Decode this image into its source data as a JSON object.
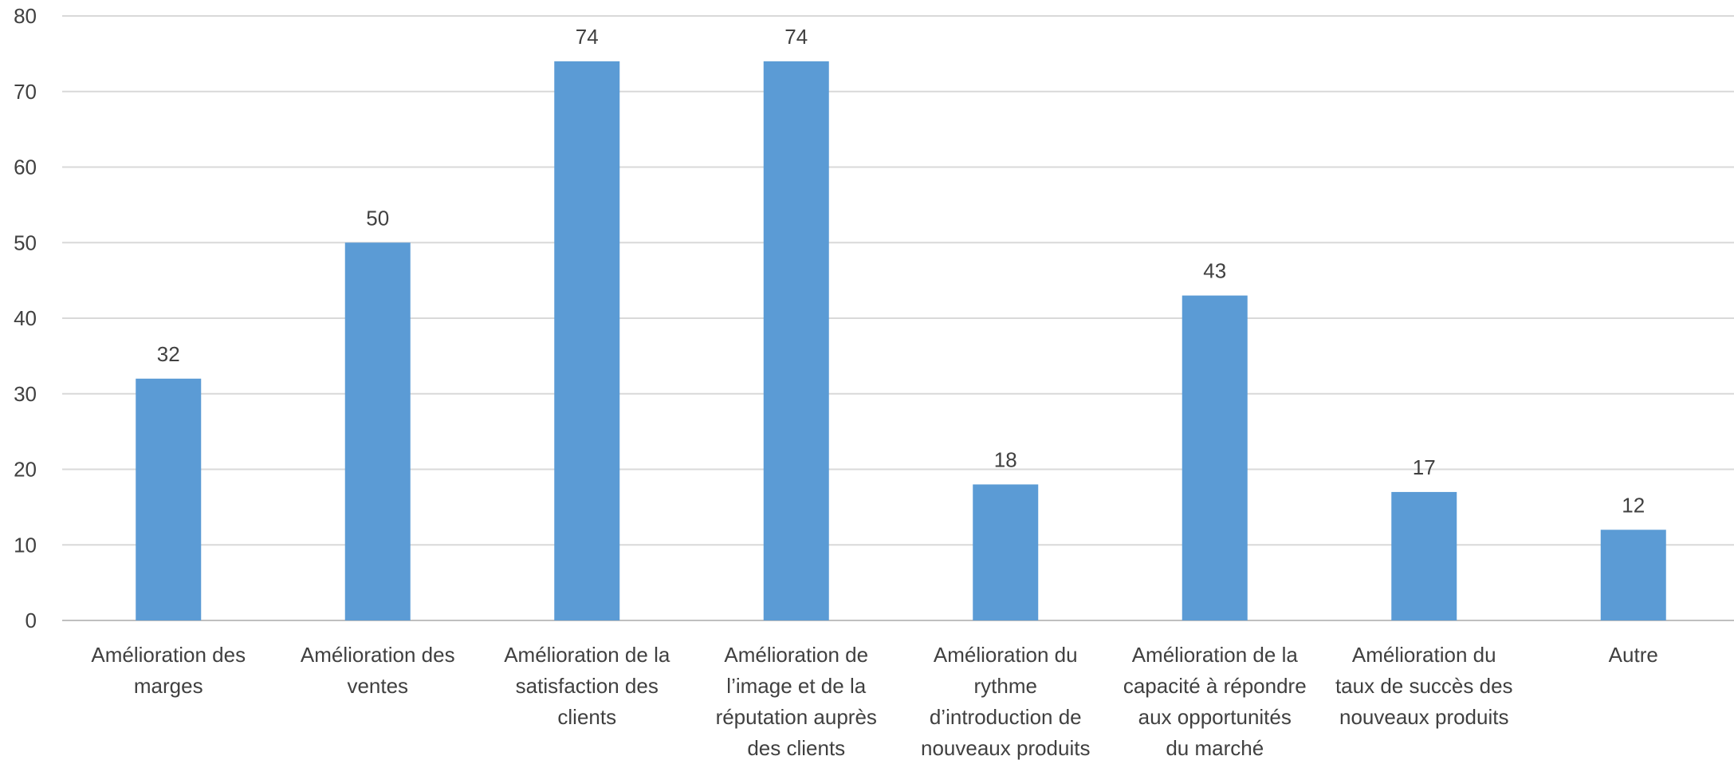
{
  "chart_data": {
    "type": "bar",
    "categories": [
      [
        "Amélioration des",
        "marges"
      ],
      [
        "Amélioration des",
        "ventes"
      ],
      [
        "Amélioration de la",
        "satisfaction des",
        "clients"
      ],
      [
        "Amélioration de",
        "l’image et de la",
        "réputation auprès",
        "des clients"
      ],
      [
        "Amélioration du",
        "rythme",
        "d’introduction de",
        "nouveaux produits"
      ],
      [
        "Amélioration de la",
        "capacité à répondre",
        "aux opportunités",
        "du marché"
      ],
      [
        "Amélioration du",
        "taux de succès des",
        "nouveaux produits"
      ],
      [
        "Autre"
      ]
    ],
    "values": [
      32,
      50,
      74,
      74,
      18,
      43,
      17,
      12
    ],
    "data_labels": [
      "32",
      "50",
      "74",
      "74",
      "18",
      "43",
      "17",
      "12"
    ],
    "ylim": [
      0,
      80
    ],
    "yticks": [
      0,
      10,
      20,
      30,
      40,
      50,
      60,
      70,
      80
    ],
    "title": "",
    "xlabel": "",
    "ylabel": "",
    "grid": true,
    "legend": "none",
    "bar_color": "#5b9bd5"
  }
}
